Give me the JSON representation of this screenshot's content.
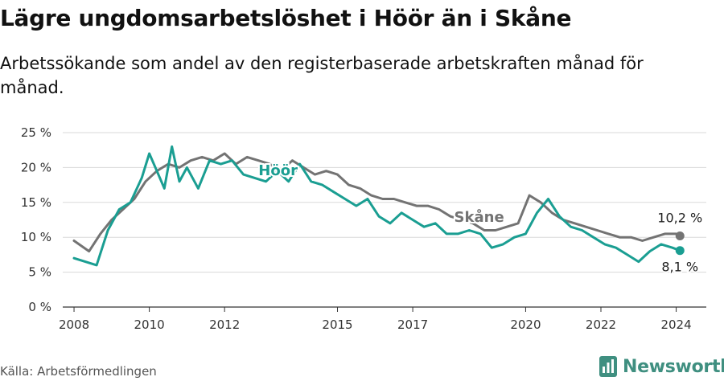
{
  "title": "Lägre ungdomsarbetslöshet i Höör än i Skåne",
  "subtitle": "Arbetssökande som andel av den registerbaserade arbetskraften månad för månad.",
  "source": "Källa: Arbetsförmedlingen",
  "brand": "Newsworthy",
  "colors": {
    "hoor": "#1a9e92",
    "skane": "#737373",
    "grid": "#d9d9d9",
    "axis": "#333333",
    "brand": "#3f8f80"
  },
  "chart_data": {
    "type": "line",
    "ylim": [
      0,
      25
    ],
    "yticks": [
      0,
      5,
      10,
      15,
      20,
      25
    ],
    "ytick_labels": [
      "0 %",
      "5 %",
      "10 %",
      "15 %",
      "20 %",
      "25 %"
    ],
    "xlim": [
      2007.7,
      2024.8
    ],
    "xticks": [
      2008,
      2010,
      2012,
      2015,
      2017,
      2020,
      2022,
      2024
    ],
    "xtick_labels": [
      "2008",
      "2010",
      "2012",
      "2015",
      "2017",
      "2020",
      "2022",
      "2024"
    ],
    "series": [
      {
        "name": "Skåne",
        "label": "Skåne",
        "end_label": "10,2 %",
        "x": [
          2008.0,
          2008.4,
          2008.7,
          2009.0,
          2009.3,
          2009.6,
          2009.9,
          2010.2,
          2010.5,
          2010.8,
          2011.1,
          2011.4,
          2011.7,
          2012.0,
          2012.3,
          2012.6,
          2012.9,
          2013.2,
          2013.5,
          2013.8,
          2014.1,
          2014.4,
          2014.7,
          2015.0,
          2015.3,
          2015.6,
          2015.9,
          2016.2,
          2016.5,
          2016.8,
          2017.1,
          2017.4,
          2017.7,
          2018.0,
          2018.3,
          2018.6,
          2018.9,
          2019.2,
          2019.5,
          2019.8,
          2020.1,
          2020.4,
          2020.7,
          2021.0,
          2021.3,
          2021.6,
          2021.9,
          2022.2,
          2022.5,
          2022.8,
          2023.1,
          2023.4,
          2023.7,
          2024.0,
          2024.1
        ],
        "values": [
          9.5,
          8.0,
          10.5,
          12.5,
          14.0,
          15.5,
          18.0,
          19.5,
          20.5,
          20.0,
          21.0,
          21.5,
          21.0,
          22.0,
          20.5,
          21.5,
          21.0,
          20.5,
          19.5,
          21.0,
          20.0,
          19.0,
          19.5,
          19.0,
          17.5,
          17.0,
          16.0,
          15.5,
          15.5,
          15.0,
          14.5,
          14.5,
          14.0,
          13.0,
          12.5,
          12.0,
          11.0,
          11.0,
          11.5,
          12.0,
          16.0,
          15.0,
          13.5,
          12.5,
          12.0,
          11.5,
          11.0,
          10.5,
          10.0,
          10.0,
          9.5,
          10.0,
          10.5,
          10.5,
          10.2
        ]
      },
      {
        "name": "Höör",
        "label": "Höör",
        "end_label": "8,1 %",
        "x": [
          2008.0,
          2008.3,
          2008.6,
          2008.9,
          2009.2,
          2009.5,
          2009.8,
          2010.0,
          2010.2,
          2010.4,
          2010.6,
          2010.8,
          2011.0,
          2011.3,
          2011.6,
          2011.9,
          2012.2,
          2012.5,
          2012.8,
          2013.1,
          2013.4,
          2013.7,
          2014.0,
          2014.3,
          2014.6,
          2014.9,
          2015.2,
          2015.5,
          2015.8,
          2016.1,
          2016.4,
          2016.7,
          2017.0,
          2017.3,
          2017.6,
          2017.9,
          2018.2,
          2018.5,
          2018.8,
          2019.1,
          2019.4,
          2019.7,
          2020.0,
          2020.3,
          2020.6,
          2020.9,
          2021.2,
          2021.5,
          2021.8,
          2022.1,
          2022.4,
          2022.7,
          2023.0,
          2023.3,
          2023.6,
          2023.9,
          2024.1
        ],
        "values": [
          7.0,
          6.5,
          6.0,
          11.0,
          14.0,
          15.0,
          18.5,
          22.0,
          19.5,
          17.0,
          23.0,
          18.0,
          20.0,
          17.0,
          21.0,
          20.5,
          21.0,
          19.0,
          18.5,
          18.0,
          19.5,
          18.0,
          20.5,
          18.0,
          17.5,
          16.5,
          15.5,
          14.5,
          15.5,
          13.0,
          12.0,
          13.5,
          12.5,
          11.5,
          12.0,
          10.5,
          10.5,
          11.0,
          10.5,
          8.5,
          9.0,
          10.0,
          10.5,
          13.5,
          15.5,
          13.0,
          11.5,
          11.0,
          10.0,
          9.0,
          8.5,
          7.5,
          6.5,
          8.0,
          9.0,
          8.5,
          8.1
        ]
      }
    ]
  }
}
